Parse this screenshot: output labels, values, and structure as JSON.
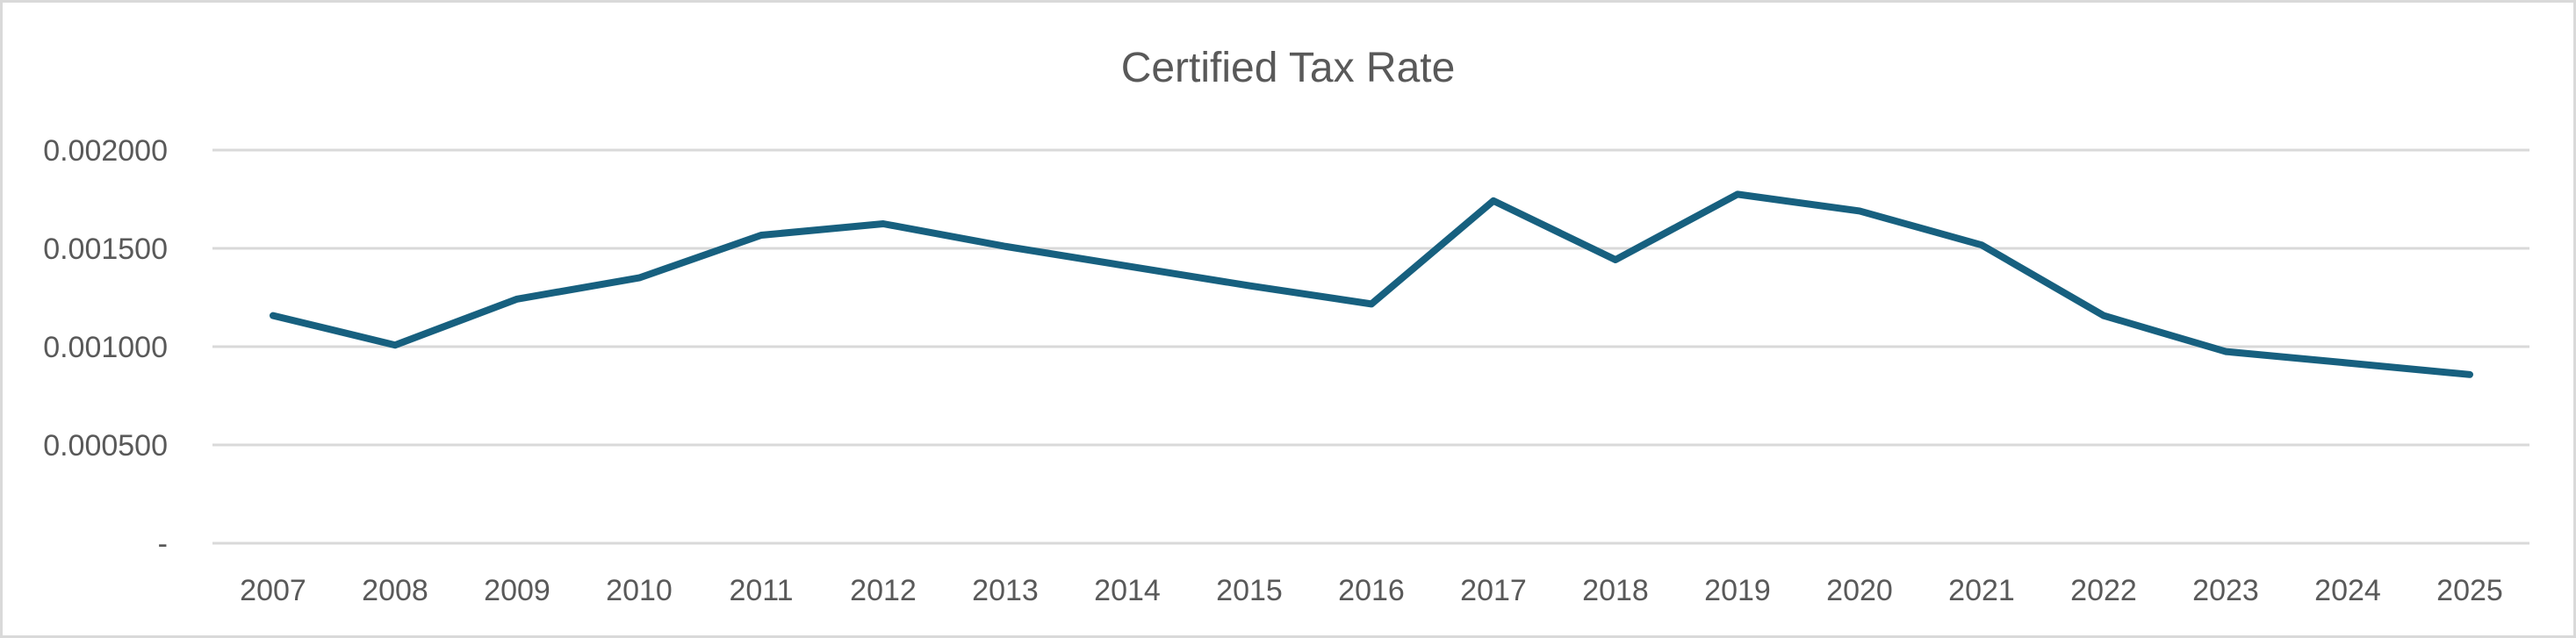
{
  "chart_data": {
    "type": "line",
    "title": "Certified Tax Rate",
    "xlabel": "",
    "ylabel": "",
    "categories": [
      "2007",
      "2008",
      "2009",
      "2010",
      "2011",
      "2012",
      "2013",
      "2014",
      "2015",
      "2016",
      "2017",
      "2018",
      "2019",
      "2020",
      "2021",
      "2022",
      "2023",
      "2024",
      "2025"
    ],
    "series": [
      {
        "values": [
          0.001158,
          0.001008,
          0.001242,
          0.00135,
          0.001567,
          0.001625,
          0.00151,
          0.00141,
          0.00131,
          0.001217,
          0.001742,
          0.001442,
          0.001775,
          0.00169,
          0.001517,
          0.001158,
          0.000975,
          0.000917,
          0.000858
        ]
      }
    ],
    "ylim": [
      0,
      0.002
    ],
    "yticks": [
      0,
      0.0005,
      0.001,
      0.0015,
      0.002
    ],
    "ytick_labels": [
      "-",
      "0.000500",
      "0.001000",
      "0.001500",
      "0.002000"
    ],
    "grid": true,
    "legend": "none",
    "colors": {
      "line": "#17607F",
      "grid": "#D9D9D9",
      "text": "#595959"
    }
  }
}
